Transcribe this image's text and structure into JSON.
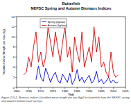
{
  "chart_data": {
    "type": "line",
    "title": "Butterfish",
    "subtitle": "NEFSC Spring and Autumn Biomass Indices",
    "x_label": "Year",
    "y_label": "Stratified Mean Weight per tow (kg)",
    "caption": "Figure 2-G-2. Biomass indices (stratified mean weight per tow (kg)) for butterfish from the NEFSC spring and autumn bottom trawl surveys.",
    "x": [
      1963,
      1964,
      1965,
      1966,
      1967,
      1968,
      1969,
      1970,
      1971,
      1972,
      1973,
      1974,
      1975,
      1976,
      1977,
      1978,
      1979,
      1980,
      1981,
      1982,
      1983,
      1984,
      1985,
      1986,
      1987,
      1988,
      1989,
      1990,
      1991,
      1992,
      1993,
      1994,
      1995,
      1996,
      1997,
      1998,
      1999,
      2000,
      2001,
      2002
    ],
    "series": [
      {
        "name": "Spring (kg/tow)",
        "color": "#0000cc",
        "values": [
          null,
          null,
          null,
          null,
          null,
          1.5,
          4.2,
          2.0,
          1.2,
          3.8,
          2.5,
          1.0,
          2.2,
          3.0,
          1.4,
          0.8,
          2.6,
          1.8,
          1.0,
          2.8,
          0.6,
          1.5,
          3.5,
          1.2,
          2.0,
          0.9,
          1.7,
          2.4,
          0.8,
          1.4,
          3.2,
          1.0,
          1.6,
          0.7,
          1.2,
          2.0,
          0.9,
          1.5,
          0.8,
          1.1
        ]
      },
      {
        "name": "Autumn (kg/tow)",
        "color": "#cc0000",
        "values": [
          2.5,
          3.0,
          6.0,
          4.0,
          8.0,
          11.0,
          5.0,
          7.0,
          4.0,
          6.0,
          12.0,
          9.0,
          6.0,
          11.0,
          8.0,
          5.0,
          9.0,
          12.0,
          6.0,
          8.0,
          3.0,
          10.0,
          7.0,
          5.0,
          11.0,
          4.0,
          6.0,
          8.0,
          5.0,
          12.0,
          7.0,
          10.0,
          4.0,
          5.0,
          3.0,
          2.0,
          7.0,
          3.0,
          2.0,
          2.5
        ]
      }
    ],
    "xlim": [
      1960,
      2005
    ],
    "xticks": [
      1960,
      1965,
      1970,
      1975,
      1980,
      1985,
      1990,
      1995,
      2000,
      2005
    ],
    "ylim": [
      0,
      14
    ],
    "yticks": [
      0,
      2,
      4,
      6,
      8,
      10,
      12,
      14
    ],
    "legend": "top-left",
    "grid": false
  }
}
